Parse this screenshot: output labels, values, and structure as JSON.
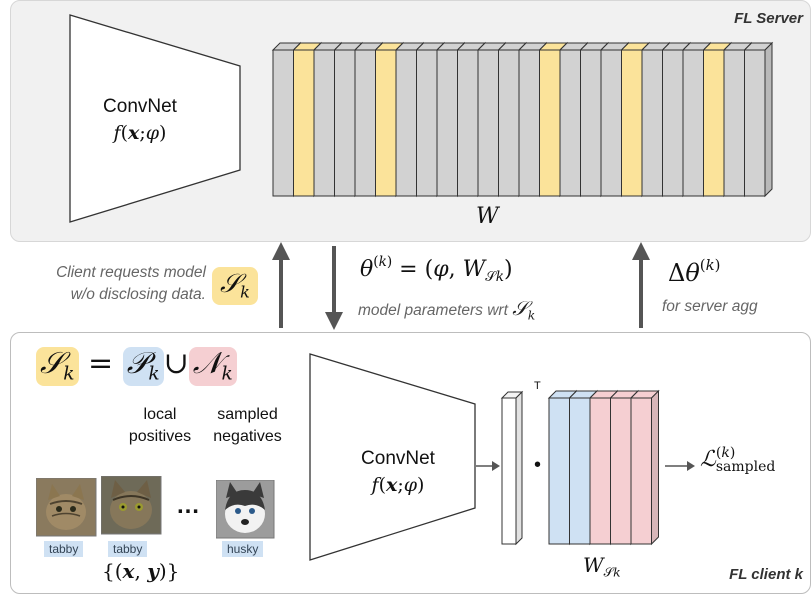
{
  "server": {
    "tag": "FL Server",
    "convnet_title": "ConvNet",
    "convnet_func": "f(x;φ)",
    "w_label": "W",
    "columns": {
      "count": 24,
      "highlighted": [
        1,
        5,
        13,
        17,
        21
      ],
      "colors": {
        "gray": "#d2d2d2",
        "yellow": "#fbe39a"
      }
    }
  },
  "middle": {
    "request_caption": "Client requests model w/o disclosing data.",
    "request_line1": "Client requests model",
    "request_line2": "w/o disclosing data.",
    "s_k": "S_k",
    "theta_eq": "θ^(k) = (φ, W_Sk)",
    "param_caption": "model parameters wrt",
    "delta_theta": "Δθ^(k)",
    "agg_caption": "for server agg"
  },
  "client": {
    "tag": "FL client k",
    "set_eq": "S_k = P_k ∪ N_k",
    "local_label": "local",
    "positives_label": "positives",
    "sampled_label": "sampled",
    "negatives_label": "negatives",
    "images": [
      {
        "label": "tabby",
        "icon": "tabby-cat-photo"
      },
      {
        "label": "tabby",
        "icon": "tabby-cat-photo"
      },
      {
        "label": "husky",
        "icon": "husky-dog-photo"
      }
    ],
    "ellipsis": "…",
    "dataset": "{(x, y)}",
    "convnet_title": "ConvNet",
    "convnet_func": "f(x;φ)",
    "transpose": "T",
    "dot": "•",
    "w_sk": "W_Sk",
    "loss": "L^(k)_sampled",
    "colors": {
      "yellow": "#fbe39a",
      "blue": "#cfe1f3",
      "pink": "#f5cfd2"
    }
  }
}
